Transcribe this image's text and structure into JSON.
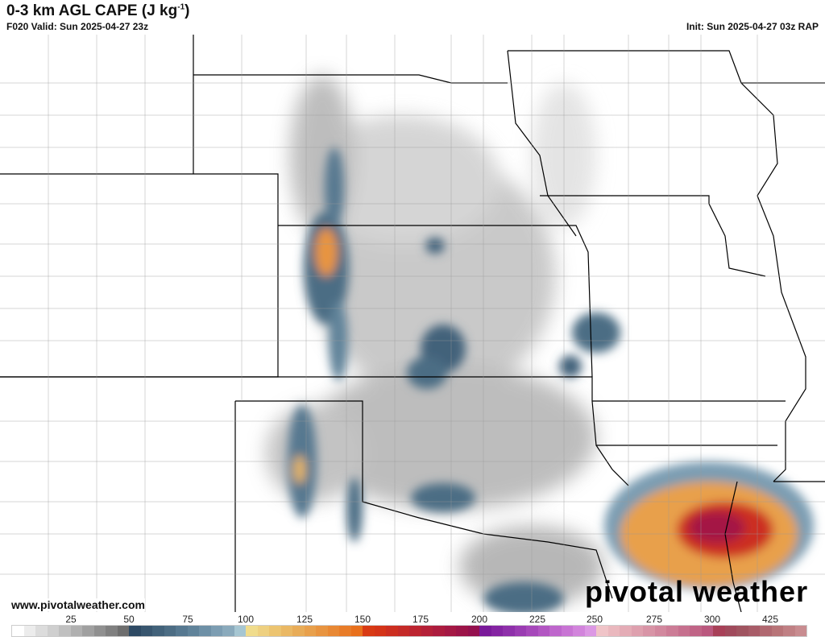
{
  "header": {
    "title": "0-3 km AGL CAPE (J kg",
    "title_sup": "-1",
    "title_end": ")",
    "valid": "F020 Valid: Sun 2025-04-27 23z",
    "init": "Init: Sun 2025-04-27 03z RAP"
  },
  "footer": {
    "website": "www.pivotalweather.com",
    "logo": "pivotal weather"
  },
  "colorbar": {
    "labels": [
      "25",
      "50",
      "75",
      "100",
      "125",
      "150",
      "175",
      "200",
      "225",
      "250",
      "275",
      "300",
      "425"
    ],
    "colors": [
      "#ffffff",
      "#ececec",
      "#dcdcdc",
      "#cfcfcf",
      "#c0c0c0",
      "#b0b0b0",
      "#a0a0a0",
      "#909090",
      "#808080",
      "#6e6e6e",
      "#2e4a64",
      "#38566f",
      "#42627a",
      "#4c6d84",
      "#567890",
      "#60839a",
      "#6e90a6",
      "#7c9db2",
      "#8aaabc",
      "#a6c6d2",
      "#f0dc8c",
      "#eed080",
      "#ecc470",
      "#eab864",
      "#e8ac58",
      "#e8a04c",
      "#e89440",
      "#e88834",
      "#e87c28",
      "#e8701c",
      "#d83a14",
      "#d43418",
      "#cc2e20",
      "#c42a28",
      "#bc2430",
      "#b42038",
      "#ac1c3e",
      "#a41844",
      "#9c1448",
      "#94104e",
      "#7a1a9a",
      "#8424a2",
      "#8e30aa",
      "#9a3cb2",
      "#a648ba",
      "#b256c2",
      "#be66cc",
      "#c874d4",
      "#d284dc",
      "#dc98e4",
      "#f0c4c8",
      "#eab8be",
      "#e4acb6",
      "#dea0ae",
      "#d894a6",
      "#d2889e",
      "#cc7c96",
      "#c6708e",
      "#c06486",
      "#ba587e",
      "#a84058",
      "#a04a5c",
      "#a05460",
      "#a85c68",
      "#b06870",
      "#b87478",
      "#c08084",
      "#c88c90"
    ]
  },
  "map": {
    "colors": {
      "low": "#909090",
      "mid": "#2e4a64",
      "high": "#e8941c",
      "very_high": "#b01c30"
    }
  }
}
